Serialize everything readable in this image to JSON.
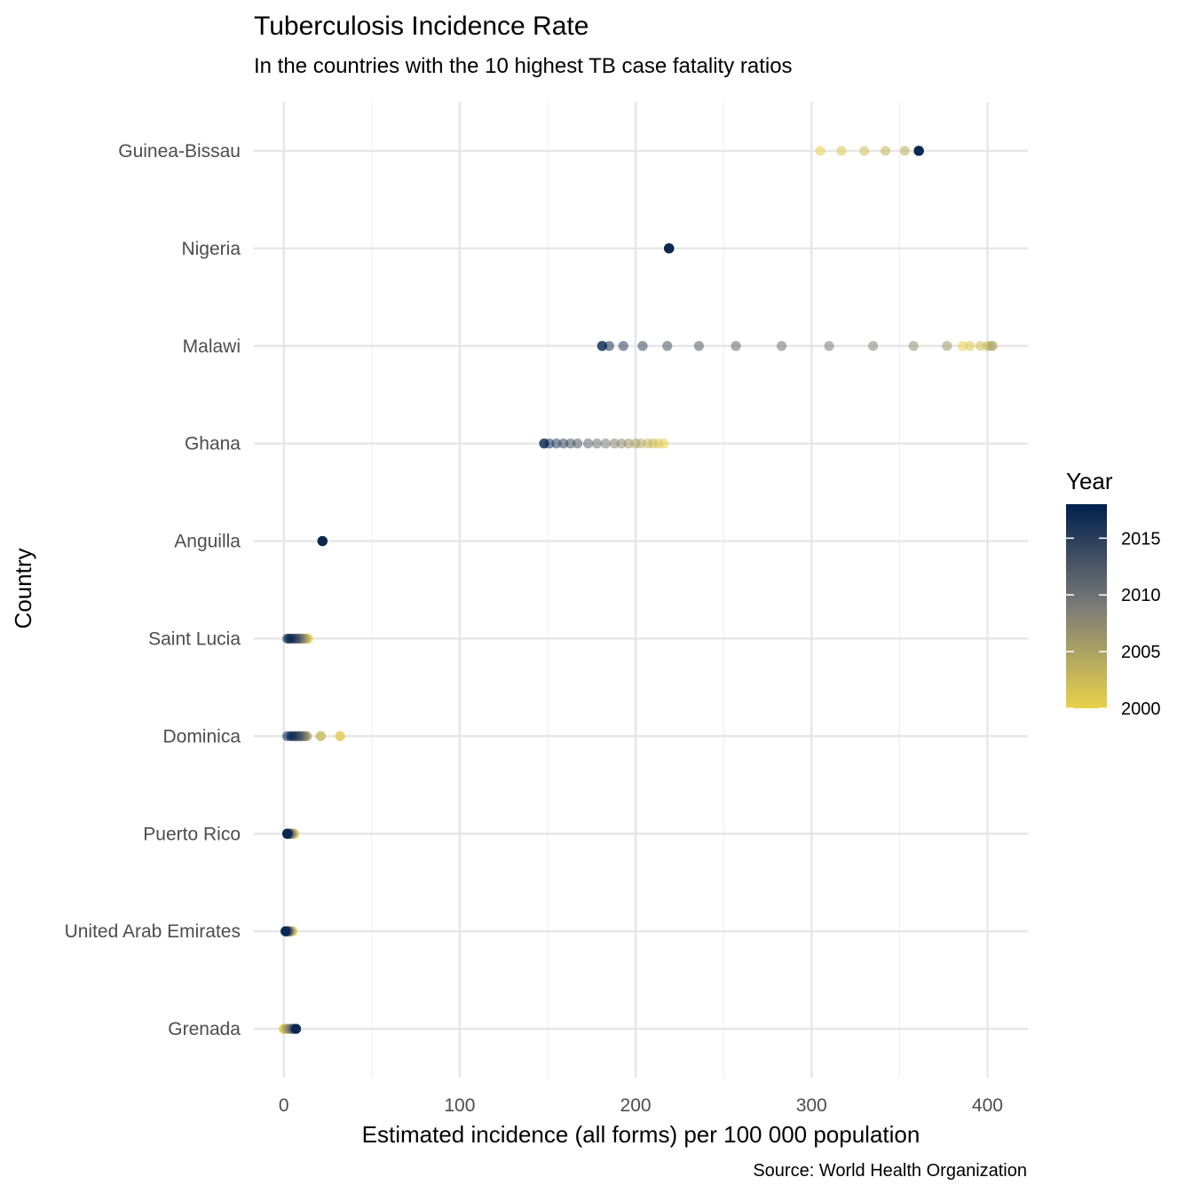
{
  "chart_data": {
    "type": "scatter",
    "title": "Tuberculosis Incidence Rate",
    "subtitle": "In the countries with the 10 highest TB case fatality ratios",
    "xlabel": "Estimated incidence (all forms) per 100 000 population",
    "ylabel": "Country",
    "caption": "Source: World Health Organization",
    "xlim": [
      -17,
      423
    ],
    "x_ticks": [
      0,
      100,
      200,
      300,
      400
    ],
    "x_tick_labels": [
      "0",
      "100",
      "200",
      "300",
      "400"
    ],
    "grid": true,
    "categories": [
      "Guinea-Bissau",
      "Nigeria",
      "Malawi",
      "Ghana",
      "Anguilla",
      "Saint Lucia",
      "Dominica",
      "Puerto Rico",
      "United Arab Emirates",
      "Grenada"
    ],
    "color_scale": {
      "title": "Year",
      "min": 2000,
      "max": 2018,
      "low_color": "#e8d24a",
      "mid_color": "#7c7b78",
      "high_color": "#00204d",
      "ticks": [
        2000,
        2005,
        2010,
        2015
      ],
      "tick_labels": [
        "2000",
        "2005",
        "2010",
        "2015"
      ],
      "legend_position": "right"
    },
    "years": [
      2000,
      2001,
      2002,
      2003,
      2004,
      2005,
      2006,
      2007,
      2008,
      2009,
      2010,
      2011,
      2012,
      2013,
      2014,
      2015,
      2016,
      2017,
      2018
    ],
    "series": [
      {
        "category": "Guinea-Bissau",
        "values": [
          305,
          317,
          330,
          342,
          353,
          361,
          361,
          361,
          361,
          361,
          361,
          361,
          361,
          361,
          361,
          361,
          361,
          361,
          361
        ]
      },
      {
        "category": "Nigeria",
        "values": [
          219,
          219,
          219,
          219,
          219,
          219,
          219,
          219,
          219,
          219,
          219,
          219,
          219,
          219,
          219,
          219,
          219,
          219,
          219
        ]
      },
      {
        "category": "Malawi",
        "values": [
          386,
          390,
          396,
          400,
          402,
          403,
          377,
          358,
          335,
          310,
          283,
          257,
          236,
          218,
          204,
          193,
          185,
          181,
          181
        ]
      },
      {
        "category": "Ghana",
        "values": [
          216,
          213,
          210,
          207,
          203,
          200,
          196,
          192,
          188,
          183,
          178,
          173,
          167,
          163,
          159,
          155,
          151,
          148,
          148
        ]
      },
      {
        "category": "Anguilla",
        "values": [
          22,
          22,
          22,
          22,
          22,
          22,
          22,
          22,
          22,
          22,
          22,
          22,
          22,
          22,
          22,
          22,
          22,
          22,
          22
        ]
      },
      {
        "category": "Saint Lucia",
        "values": [
          14,
          13,
          13,
          12,
          12,
          11,
          11,
          10,
          10,
          9,
          9,
          8,
          7,
          7,
          6,
          5,
          4,
          3,
          2
        ]
      },
      {
        "category": "Dominica",
        "values": [
          32,
          32,
          21,
          21,
          13,
          13,
          12,
          12,
          11,
          11,
          10,
          9,
          9,
          8,
          7,
          6,
          5,
          4,
          2
        ]
      },
      {
        "category": "Puerto Rico",
        "values": [
          6,
          6,
          5,
          5,
          5,
          4,
          4,
          4,
          4,
          3,
          3,
          3,
          3,
          2,
          2,
          2,
          2,
          2,
          2
        ]
      },
      {
        "category": "United Arab Emirates",
        "values": [
          5,
          5,
          4,
          4,
          4,
          3,
          3,
          3,
          3,
          3,
          2,
          2,
          2,
          2,
          2,
          1,
          1,
          1,
          1
        ]
      },
      {
        "category": "Grenada",
        "values": [
          0,
          0,
          1,
          1,
          2,
          2,
          3,
          3,
          4,
          4,
          5,
          5,
          6,
          6,
          6,
          7,
          7,
          7,
          7
        ]
      }
    ]
  }
}
